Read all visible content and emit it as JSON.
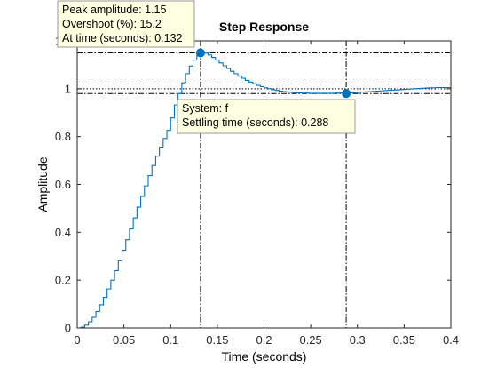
{
  "chart_data": {
    "type": "line",
    "title": "Step Response",
    "xlabel": "Time (seconds)",
    "ylabel": "Amplitude",
    "xlim": [
      0,
      0.4
    ],
    "ylim": [
      0,
      1.2
    ],
    "xticks": [
      0,
      0.05,
      0.1,
      0.15,
      0.2,
      0.25,
      0.3,
      0.35,
      0.4
    ],
    "xtick_labels": [
      "0",
      "0.05",
      "0.1",
      "0.15",
      "0.2",
      "0.25",
      "0.3",
      "0.35",
      "0.4"
    ],
    "yticks": [
      0,
      0.2,
      0.4,
      0.6,
      0.8,
      1.0,
      1.2
    ],
    "ytick_labels": [
      "0",
      "0.2",
      "0.4",
      "0.6",
      "0.8",
      "1",
      "1.2"
    ],
    "grid": false,
    "series": [
      {
        "style": "stairs",
        "color": "#0072BD",
        "x": [
          0,
          0.004,
          0.008,
          0.012,
          0.016,
          0.02,
          0.024,
          0.028,
          0.032,
          0.036,
          0.04,
          0.044,
          0.048,
          0.052,
          0.056,
          0.06,
          0.064,
          0.068,
          0.072,
          0.076,
          0.08,
          0.084,
          0.088,
          0.092,
          0.096,
          0.1,
          0.104,
          0.108,
          0.112,
          0.116,
          0.12,
          0.124,
          0.128,
          0.132,
          0.136,
          0.14,
          0.144,
          0.148,
          0.152,
          0.156,
          0.16,
          0.164,
          0.168,
          0.172,
          0.176,
          0.18,
          0.184,
          0.188,
          0.192,
          0.196,
          0.2,
          0.204,
          0.208,
          0.212,
          0.216,
          0.22,
          0.224,
          0.228,
          0.232,
          0.236,
          0.24,
          0.244,
          0.248,
          0.252,
          0.256,
          0.26,
          0.264,
          0.268,
          0.272,
          0.276,
          0.28,
          0.284,
          0.288,
          0.292,
          0.296,
          0.3,
          0.304,
          0.308,
          0.312,
          0.316,
          0.32,
          0.324,
          0.328,
          0.332,
          0.336,
          0.34,
          0.344,
          0.348,
          0.352,
          0.356,
          0.36,
          0.364,
          0.368,
          0.372,
          0.376,
          0.38,
          0.384,
          0.388,
          0.392,
          0.396,
          0.4
        ],
        "y": [
          0.0,
          0.003,
          0.012,
          0.026,
          0.045,
          0.069,
          0.097,
          0.128,
          0.163,
          0.2,
          0.24,
          0.281,
          0.325,
          0.369,
          0.414,
          0.46,
          0.505,
          0.55,
          0.594,
          0.637,
          0.679,
          0.718,
          0.756,
          0.792,
          0.826,
          0.878,
          0.932,
          0.98,
          1.025,
          1.063,
          1.095,
          1.12,
          1.138,
          1.15,
          1.149,
          1.141,
          1.131,
          1.12,
          1.108,
          1.096,
          1.085,
          1.073,
          1.063,
          1.053,
          1.044,
          1.035,
          1.028,
          1.021,
          1.014,
          1.009,
          1.004,
          1.0,
          0.996,
          0.993,
          0.99,
          0.988,
          0.986,
          0.985,
          0.983,
          0.983,
          0.982,
          0.982,
          0.981,
          0.981,
          0.981,
          0.981,
          0.981,
          0.981,
          0.981,
          0.982,
          0.982,
          0.982,
          0.982,
          0.983,
          0.984,
          0.985,
          0.986,
          0.987,
          0.988,
          0.989,
          0.99,
          0.991,
          0.992,
          0.993,
          0.994,
          0.995,
          0.996,
          0.997,
          0.998,
          0.999,
          1.0,
          1.001,
          1.002,
          1.003,
          1.004,
          1.004,
          1.005,
          1.005,
          1.005,
          1.005,
          1.005
        ]
      }
    ],
    "reference_lines": {
      "horizontal": [
        1.15,
        1.02,
        0.98
      ],
      "final_value": 1.0,
      "vertical": [
        0.132,
        0.288
      ]
    },
    "markers": [
      {
        "x": 0.132,
        "y": 1.15
      },
      {
        "x": 0.288,
        "y": 0.98
      }
    ],
    "annotations": [
      {
        "name": "peak",
        "lines": [
          "Peak amplitude: 1.15",
          "Overshoot (%): 15.2",
          "At time (seconds): 0.132"
        ]
      },
      {
        "name": "settling",
        "lines": [
          "System: f",
          "Settling time (seconds): 0.288"
        ]
      }
    ]
  }
}
